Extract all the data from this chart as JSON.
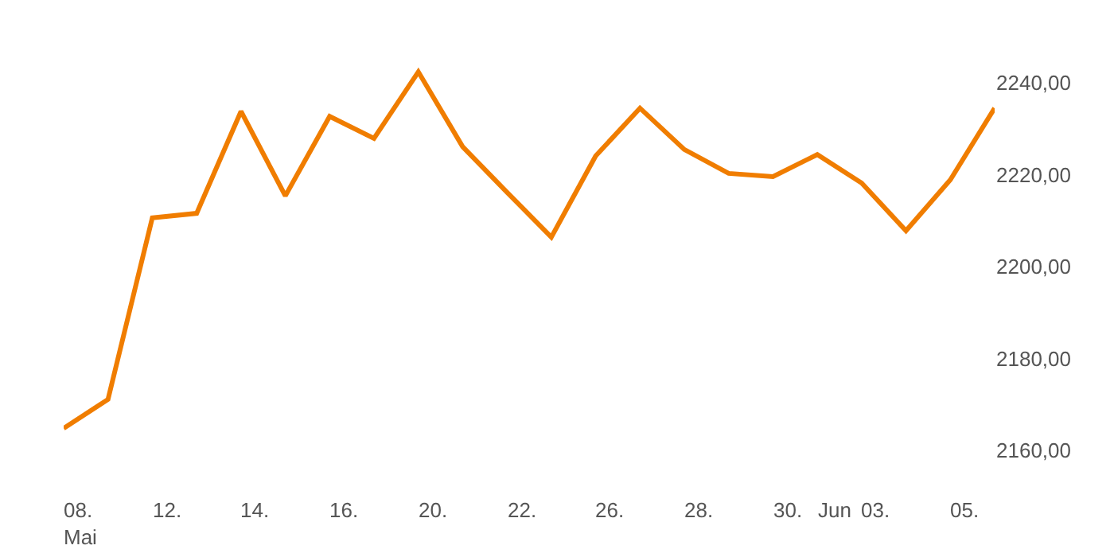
{
  "chart_data": {
    "type": "line",
    "categories": [
      "08.\nMai",
      null,
      "12.",
      null,
      "14.",
      null,
      "16.",
      null,
      "20.",
      null,
      "22.",
      null,
      "26.",
      null,
      "28.",
      null,
      "30.",
      "Jun",
      "03.",
      null,
      "05.",
      null
    ],
    "series": [
      {
        "color": "#f07d00",
        "values": [
          2164.8,
          2171.1,
          2210.6,
          2211.6,
          2233.8,
          2215.4,
          2232.7,
          2227.9,
          2242.4,
          2226.1,
          2216.2,
          2206.4,
          2224.1,
          2234.5,
          2225.5,
          2220.3,
          2219.6,
          2224.4,
          2218.2,
          2207.8,
          2218.9,
          2234.5
        ]
      }
    ],
    "ylim": [
      2160,
      2257
    ],
    "yticks": [
      {
        "value": 2160,
        "label": "2160,00"
      },
      {
        "value": 2180,
        "label": "2180,00"
      },
      {
        "value": 2200,
        "label": "2200,00"
      },
      {
        "value": 2220,
        "label": "2220,00"
      },
      {
        "value": 2240,
        "label": "2240,00"
      }
    ],
    "grid": false,
    "marker": "none",
    "line_style": "solid"
  }
}
